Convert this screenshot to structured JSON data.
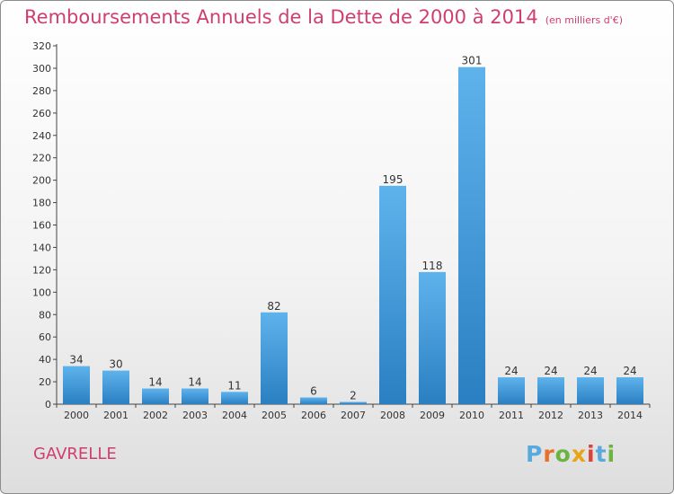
{
  "chart_data": {
    "type": "bar",
    "title": "Remboursements Annuels de la Dette de 2000 à 2014",
    "subtitle": "(en milliers d'€)",
    "categories": [
      "2000",
      "2001",
      "2002",
      "2003",
      "2004",
      "2005",
      "2006",
      "2007",
      "2008",
      "2009",
      "2010",
      "2011",
      "2012",
      "2013",
      "2014"
    ],
    "values": [
      34,
      30,
      14,
      14,
      11,
      82,
      6,
      2,
      195,
      118,
      301,
      24,
      24,
      24,
      24
    ],
    "ylim": [
      0,
      320
    ],
    "yticks": [
      0,
      20,
      40,
      60,
      80,
      100,
      120,
      140,
      160,
      180,
      200,
      220,
      240,
      260,
      280,
      300,
      320
    ],
    "grid": false,
    "bar_color": "#3d9ce0"
  },
  "footer": {
    "place": "GAVRELLE",
    "brand_letters": [
      {
        "ch": "P",
        "color": "#5aa9dd"
      },
      {
        "ch": "r",
        "color": "#e8702a"
      },
      {
        "ch": "o",
        "color": "#6cb33f"
      },
      {
        "ch": "x",
        "color": "#e8a317"
      },
      {
        "ch": "i",
        "color": "#d9433a"
      },
      {
        "ch": "t",
        "color": "#5aa9dd"
      },
      {
        "ch": "i",
        "color": "#6cb33f"
      }
    ]
  }
}
